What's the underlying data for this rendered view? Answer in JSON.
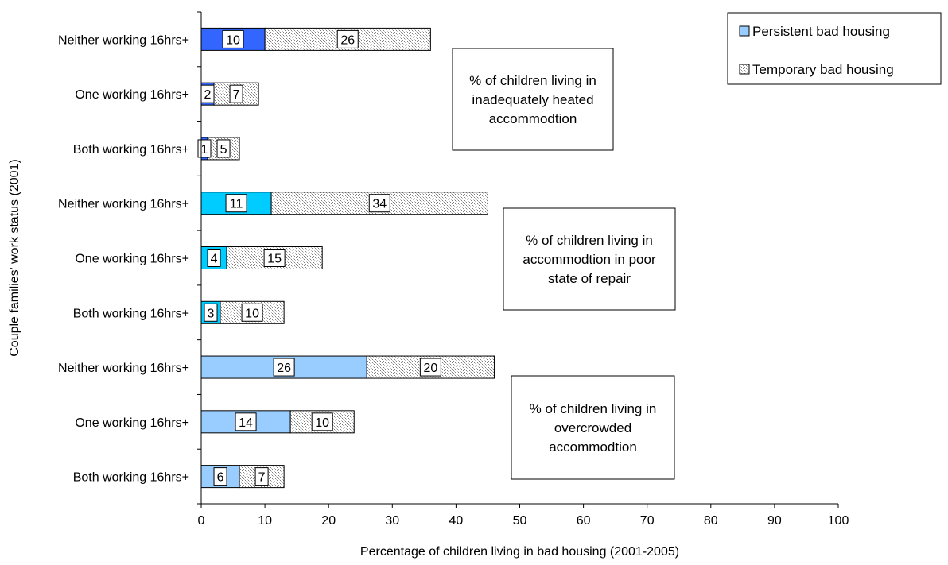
{
  "chart_data": {
    "type": "bar",
    "orientation": "horizontal",
    "stacked": true,
    "xlabel": "Percentage of children living in bad housing (2001-2005)",
    "ylabel": "Couple families' work status (2001)",
    "xlim": [
      0,
      100
    ],
    "xticks": [
      0,
      10,
      20,
      30,
      40,
      50,
      60,
      70,
      80,
      90,
      100
    ],
    "grid": false,
    "legend_position": "top-right",
    "categories": [
      "Neither working 16hrs+",
      "One working 16hrs+",
      "Both working 16hrs+",
      "Neither working 16hrs+",
      "One working 16hrs+",
      "Both working 16hrs+",
      "Neither working 16hrs+",
      "One working 16hrs+",
      "Both working 16hrs+"
    ],
    "series": [
      {
        "name": "Persistent bad housing",
        "values": [
          10,
          2,
          1,
          11,
          4,
          3,
          26,
          14,
          6
        ],
        "colors": [
          "#3366ff",
          "#3366ff",
          "#3366ff",
          "#00ccff",
          "#00ccff",
          "#00ccff",
          "#99ccff",
          "#99ccff",
          "#99ccff"
        ],
        "legend_color": "#99ccff"
      },
      {
        "name": "Temporary bad housing",
        "values": [
          26,
          7,
          5,
          34,
          15,
          10,
          20,
          10,
          7
        ],
        "pattern": "dotted",
        "color": "#d9d9d9"
      }
    ],
    "groups": [
      {
        "label": "% of children living in inadequately heated accommodtion",
        "lines": [
          "% of children living in",
          "inadequately heated",
          "accommodtion"
        ]
      },
      {
        "label": "% of children living in accommodtion in poor state of repair",
        "lines": [
          "% of children living in",
          "accommodtion in poor",
          "state of repair"
        ]
      },
      {
        "label": "% of children living in overcrowded accommodtion",
        "lines": [
          "% of children living in",
          "overcrowded",
          "accommodtion"
        ]
      }
    ]
  }
}
